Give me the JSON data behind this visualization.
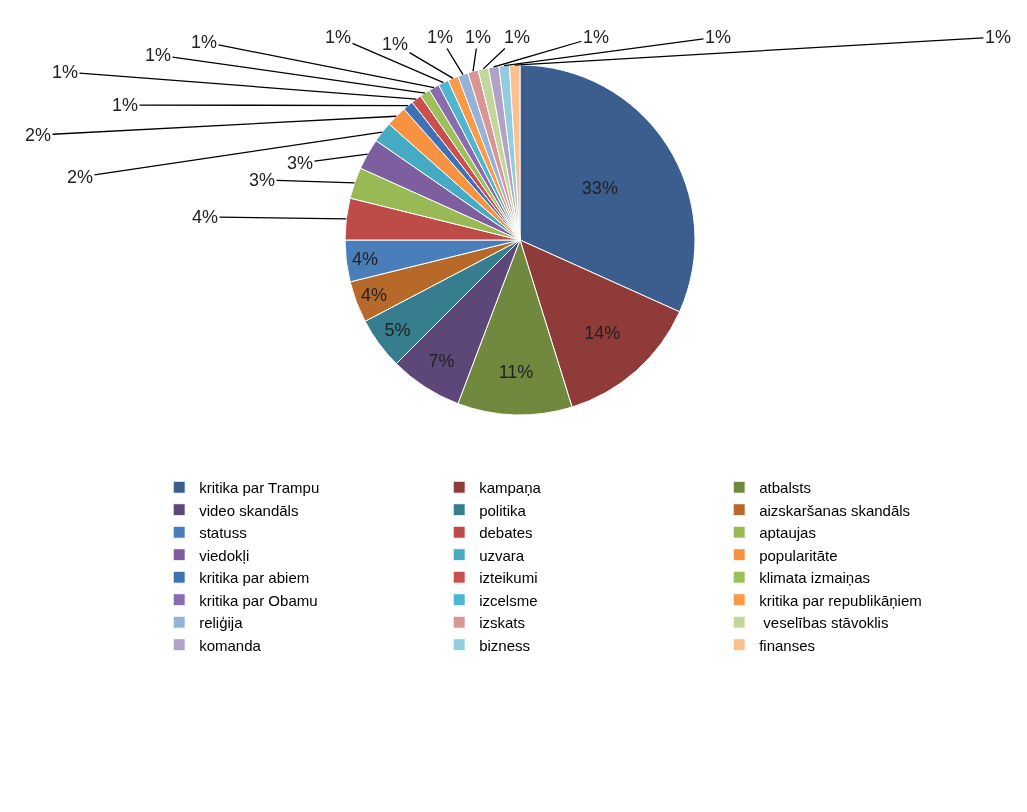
{
  "chart_data": {
    "type": "pie",
    "categories": [
      "kritika par Trampu",
      "kampaņa",
      "atbalsts",
      "video skandāls",
      "politika",
      "aizskaršanas skandāls",
      "statuss",
      "debates",
      "aptaujas",
      "viedokļi",
      "uzvara",
      "popularitāte",
      "kritika par abiem",
      "izteikumi",
      "klimata izmaiņas",
      "kritika par Obamu",
      "izcelsme",
      "kritika par republikāņiem",
      "reliģija",
      "izskats",
      " veselības stāvoklis",
      "komanda",
      "bizness",
      "finanses"
    ],
    "values": [
      33,
      14,
      11,
      7,
      5,
      4,
      4,
      4,
      3,
      3,
      2,
      2,
      1,
      1,
      1,
      1,
      1,
      1,
      1,
      1,
      1,
      1,
      1,
      1
    ],
    "value_labels": [
      "33%",
      "14%",
      "11%",
      "7%",
      "5%",
      "4%",
      "4%",
      "4%",
      "3%",
      "3%",
      "2%",
      "2%",
      "1%",
      "1%",
      "1%",
      "1%",
      "1%",
      "1%",
      "1%",
      "1%",
      "1%",
      "1%",
      "1%",
      "1%"
    ],
    "colors": [
      "#3b5e8f",
      "#8e3b39",
      "#71893f",
      "#5d4778",
      "#357d8f",
      "#b7692a",
      "#4a7ebb",
      "#be4b48",
      "#98b954",
      "#7d5fa0",
      "#46aac5",
      "#f69240",
      "#3f72b5",
      "#c9504c",
      "#9dc05a",
      "#8a6bb0",
      "#4fb6d0",
      "#fa9a48",
      "#95b3d7",
      "#d99694",
      "#c3d69b",
      "#b3a2c7",
      "#93cddd",
      "#fac090"
    ],
    "legend": "bottom"
  }
}
